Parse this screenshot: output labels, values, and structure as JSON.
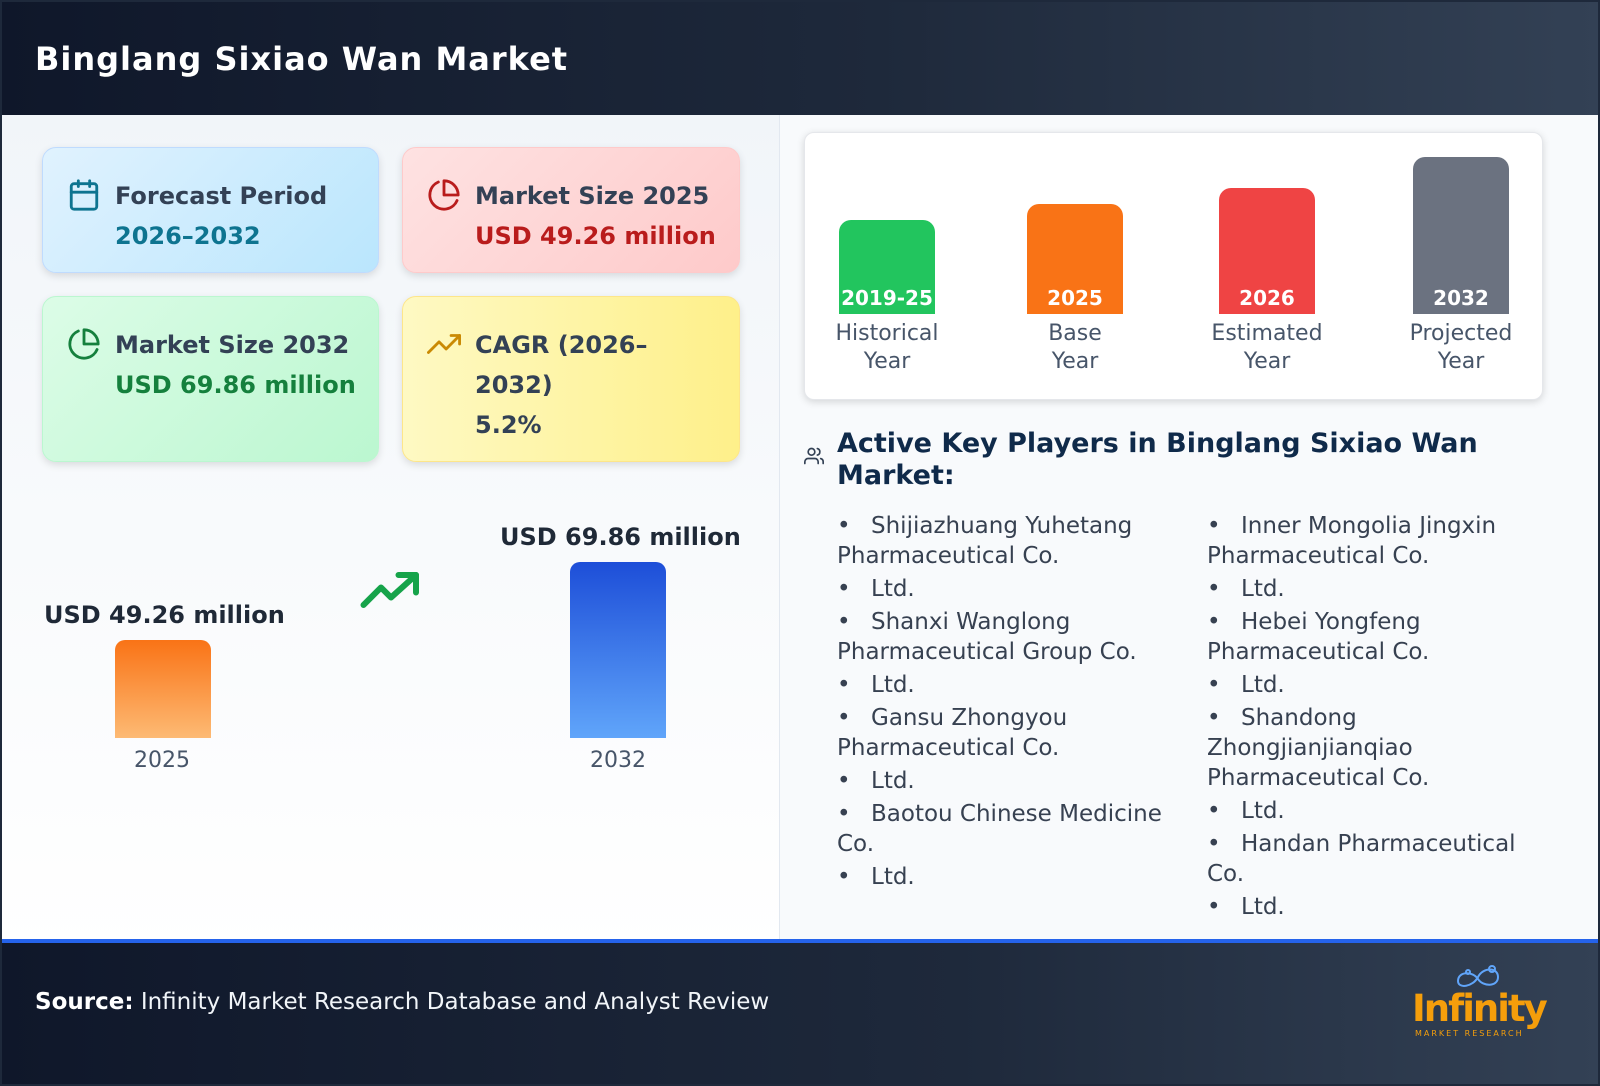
{
  "header": {
    "title": "Binglang Sixiao Wan Market"
  },
  "cards": {
    "forecast": {
      "label": "Forecast Period",
      "value": "2026–2032"
    },
    "size_2025": {
      "label": "Market Size 2025",
      "value": "USD 49.26 million"
    },
    "size_2032": {
      "label": "Market Size 2032",
      "value": "USD 69.86 million"
    },
    "cagr": {
      "label_line1": "CAGR (2026–",
      "label_line2": "2032)",
      "value": "5.2%"
    }
  },
  "growth": {
    "from": {
      "label": "USD 49.26 million",
      "year": "2025",
      "value": 49.26
    },
    "to": {
      "label": "USD 69.86 million",
      "year": "2032",
      "value": 69.86
    }
  },
  "timeline": [
    {
      "tag": "2019-25",
      "cap1": "Historical",
      "cap2": "Year",
      "color": "#22c55e"
    },
    {
      "tag": "2025",
      "cap1": "Base",
      "cap2": "Year",
      "color": "#f97316"
    },
    {
      "tag": "2026",
      "cap1": "Estimated",
      "cap2": "Year",
      "color": "#ef4444"
    },
    {
      "tag": "2032",
      "cap1": "Projected",
      "cap2": "Year",
      "color": "#6b7280"
    }
  ],
  "players": {
    "title_line1": "Active Key Players in Binglang Sixiao Wan",
    "title_line2": "Market:",
    "col1": [
      [
        "Shijiazhuang Yuhetang",
        "Pharmaceutical Co."
      ],
      [
        "Ltd."
      ],
      [
        "Shanxi Wanglong",
        "Pharmaceutical Group Co."
      ],
      [
        "Ltd."
      ],
      [
        "Gansu Zhongyou",
        "Pharmaceutical Co."
      ],
      [
        "Ltd."
      ],
      [
        "Baotou Chinese Medicine",
        "Co."
      ],
      [
        "Ltd."
      ]
    ],
    "col2": [
      [
        "Inner Mongolia Jingxin",
        "Pharmaceutical Co."
      ],
      [
        "Ltd."
      ],
      [
        "Hebei Yongfeng",
        "Pharmaceutical Co."
      ],
      [
        "Ltd."
      ],
      [
        "Shandong",
        "Zhongjianjianqiao",
        "Pharmaceutical Co."
      ],
      [
        "Ltd."
      ],
      [
        "Handan Pharmaceutical",
        "Co."
      ],
      [
        "Ltd."
      ]
    ]
  },
  "footer": {
    "source_label": "Source:",
    "source_text": " Infinity Market Research Database and Analyst Review"
  },
  "logo": {
    "word": "Infinity",
    "sub": "MARKET RESEARCH"
  },
  "colors": {
    "accent_blue": "#2563eb",
    "orange": "#f97316",
    "green": "#16a34a"
  }
}
